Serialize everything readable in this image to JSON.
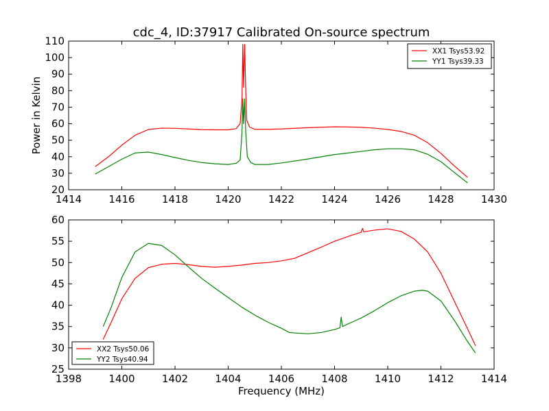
{
  "chart_data": [
    {
      "type": "line",
      "title": "cdc_4, ID:37917 Calibrated On-source spectrum",
      "xlabel": "",
      "ylabel": "Power in Kelvin",
      "xlim": [
        1414,
        1430
      ],
      "ylim": [
        20,
        110
      ],
      "xticks": [
        "1414",
        "1416",
        "1418",
        "1420",
        "1422",
        "1424",
        "1426",
        "1428",
        "1430"
      ],
      "yticks": [
        "20",
        "30",
        "40",
        "50",
        "60",
        "70",
        "80",
        "90",
        "100",
        "110"
      ],
      "grid": false,
      "legend_position": "top-right",
      "series": [
        {
          "name": "XX1 Tsys53.92",
          "color": "#ff0000",
          "points": [
            [
              1415.0,
              34
            ],
            [
              1415.5,
              40
            ],
            [
              1416.0,
              47
            ],
            [
              1416.5,
              53
            ],
            [
              1417.0,
              56.5
            ],
            [
              1417.5,
              57.3
            ],
            [
              1418.0,
              57.2
            ],
            [
              1418.5,
              56.8
            ],
            [
              1419.0,
              56.4
            ],
            [
              1419.5,
              56.3
            ],
            [
              1420.0,
              56.3
            ],
            [
              1420.3,
              57
            ],
            [
              1420.45,
              60
            ],
            [
              1420.52,
              75
            ],
            [
              1420.55,
              108
            ],
            [
              1420.58,
              82
            ],
            [
              1420.62,
              108
            ],
            [
              1420.66,
              80
            ],
            [
              1420.7,
              62
            ],
            [
              1420.8,
              58
            ],
            [
              1421.0,
              56.6
            ],
            [
              1421.5,
              56.6
            ],
            [
              1422.0,
              56.8
            ],
            [
              1423.0,
              57.6
            ],
            [
              1424.0,
              58.1
            ],
            [
              1424.5,
              58.0
            ],
            [
              1425.0,
              57.8
            ],
            [
              1425.5,
              57.3
            ],
            [
              1426.0,
              56.5
            ],
            [
              1426.5,
              55.3
            ],
            [
              1427.0,
              53.0
            ],
            [
              1427.5,
              48.5
            ],
            [
              1428.0,
              42
            ],
            [
              1428.5,
              34.5
            ],
            [
              1429.0,
              27.5
            ]
          ]
        },
        {
          "name": "YY1 Tsys39.33",
          "color": "#008000",
          "points": [
            [
              1415.0,
              29.5
            ],
            [
              1415.5,
              34
            ],
            [
              1416.0,
              38.5
            ],
            [
              1416.5,
              42.3
            ],
            [
              1417.0,
              42.8
            ],
            [
              1417.5,
              41.3
            ],
            [
              1418.0,
              39.5
            ],
            [
              1418.5,
              37.8
            ],
            [
              1419.0,
              36.5
            ],
            [
              1419.5,
              35.7
            ],
            [
              1420.0,
              35.3
            ],
            [
              1420.3,
              36
            ],
            [
              1420.45,
              38
            ],
            [
              1420.52,
              55
            ],
            [
              1420.55,
              75
            ],
            [
              1420.58,
              60
            ],
            [
              1420.62,
              75
            ],
            [
              1420.66,
              55
            ],
            [
              1420.72,
              40
            ],
            [
              1420.85,
              36.5
            ],
            [
              1421.0,
              35.3
            ],
            [
              1421.5,
              35.3
            ],
            [
              1422.0,
              36.2
            ],
            [
              1423.0,
              38.6
            ],
            [
              1424.0,
              41.3
            ],
            [
              1425.0,
              43.2
            ],
            [
              1425.5,
              44.2
            ],
            [
              1426.0,
              44.8
            ],
            [
              1426.5,
              44.8
            ],
            [
              1427.0,
              44.2
            ],
            [
              1427.5,
              41.5
            ],
            [
              1428.0,
              37
            ],
            [
              1428.5,
              30.5
            ],
            [
              1429.0,
              24.2
            ]
          ]
        }
      ]
    },
    {
      "type": "line",
      "title": "",
      "xlabel": "Frequency (MHz)",
      "ylabel": "",
      "xlim": [
        1398,
        1414
      ],
      "ylim": [
        25,
        60
      ],
      "xticks": [
        "1398",
        "1400",
        "1402",
        "1404",
        "1406",
        "1408",
        "1410",
        "1412",
        "1414"
      ],
      "yticks": [
        "25",
        "30",
        "35",
        "40",
        "45",
        "50",
        "55",
        "60"
      ],
      "grid": false,
      "legend_position": "bottom-left",
      "series": [
        {
          "name": "XX2 Tsys50.06",
          "color": "#ff0000",
          "points": [
            [
              1399.3,
              32
            ],
            [
              1399.6,
              36
            ],
            [
              1400.0,
              41.5
            ],
            [
              1400.5,
              46.3
            ],
            [
              1401.0,
              48.8
            ],
            [
              1401.5,
              49.6
            ],
            [
              1402.0,
              49.8
            ],
            [
              1402.5,
              49.5
            ],
            [
              1403.0,
              49.1
            ],
            [
              1403.5,
              48.9
            ],
            [
              1404.0,
              49.1
            ],
            [
              1404.5,
              49.4
            ],
            [
              1405.0,
              49.8
            ],
            [
              1405.5,
              50.0
            ],
            [
              1406.0,
              50.4
            ],
            [
              1406.5,
              51.0
            ],
            [
              1407.0,
              52.3
            ],
            [
              1407.5,
              53.6
            ],
            [
              1408.0,
              55.0
            ],
            [
              1408.5,
              56.1
            ],
            [
              1409.0,
              57.1
            ],
            [
              1409.05,
              58.0
            ],
            [
              1409.1,
              57.2
            ],
            [
              1409.5,
              57.6
            ],
            [
              1410.0,
              57.9
            ],
            [
              1410.5,
              57.3
            ],
            [
              1411.0,
              55.5
            ],
            [
              1411.5,
              52.5
            ],
            [
              1412.0,
              47.5
            ],
            [
              1412.5,
              41
            ],
            [
              1413.0,
              34.5
            ],
            [
              1413.3,
              30.5
            ]
          ]
        },
        {
          "name": "YY2 Tsys40.94",
          "color": "#008000",
          "points": [
            [
              1399.3,
              35
            ],
            [
              1399.6,
              39.5
            ],
            [
              1400.0,
              46.5
            ],
            [
              1400.5,
              52.5
            ],
            [
              1401.0,
              54.5
            ],
            [
              1401.5,
              54.0
            ],
            [
              1402.0,
              51.8
            ],
            [
              1402.5,
              49.0
            ],
            [
              1403.0,
              46.3
            ],
            [
              1403.5,
              44.0
            ],
            [
              1404.0,
              41.8
            ],
            [
              1404.5,
              39.6
            ],
            [
              1405.0,
              37.7
            ],
            [
              1405.5,
              36.0
            ],
            [
              1406.0,
              34.6
            ],
            [
              1406.3,
              33.6
            ],
            [
              1406.5,
              33.5
            ],
            [
              1407.0,
              33.3
            ],
            [
              1407.5,
              33.6
            ],
            [
              1408.0,
              34.3
            ],
            [
              1408.2,
              34.7
            ],
            [
              1408.25,
              37.2
            ],
            [
              1408.3,
              35.0
            ],
            [
              1408.5,
              35.6
            ],
            [
              1409.0,
              37.0
            ],
            [
              1409.5,
              38.7
            ],
            [
              1410.0,
              40.6
            ],
            [
              1410.5,
              42.2
            ],
            [
              1411.0,
              43.3
            ],
            [
              1411.3,
              43.5
            ],
            [
              1411.5,
              43.3
            ],
            [
              1412.0,
              41.0
            ],
            [
              1412.5,
              36.5
            ],
            [
              1413.0,
              31.5
            ],
            [
              1413.3,
              28.8
            ]
          ]
        }
      ]
    }
  ]
}
